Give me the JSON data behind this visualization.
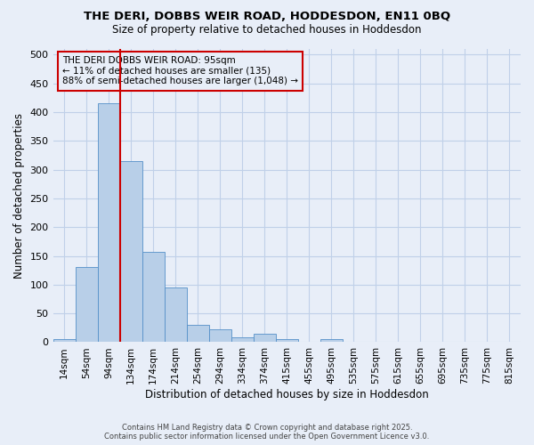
{
  "title_line1": "THE DERI, DOBBS WEIR ROAD, HODDESDON, EN11 0BQ",
  "title_line2": "Size of property relative to detached houses in Hoddesdon",
  "xlabel": "Distribution of detached houses by size in Hoddesdon",
  "ylabel": "Number of detached properties",
  "footer_line1": "Contains HM Land Registry data © Crown copyright and database right 2025.",
  "footer_line2": "Contains public sector information licensed under the Open Government Licence v3.0.",
  "categories": [
    "14sqm",
    "54sqm",
    "94sqm",
    "134sqm",
    "174sqm",
    "214sqm",
    "254sqm",
    "294sqm",
    "334sqm",
    "374sqm",
    "415sqm",
    "455sqm",
    "495sqm",
    "535sqm",
    "575sqm",
    "615sqm",
    "655sqm",
    "695sqm",
    "735sqm",
    "775sqm",
    "815sqm"
  ],
  "values": [
    5,
    130,
    415,
    315,
    157,
    95,
    30,
    22,
    8,
    15,
    5,
    0,
    5,
    0,
    0,
    0,
    0,
    0,
    0,
    0,
    0
  ],
  "bar_color": "#b8cfe8",
  "bar_edge_color": "#5590c8",
  "grid_color": "#c0d0e8",
  "background_color": "#e8eef8",
  "annotation_box_color": "#cc0000",
  "annotation_text_line1": "THE DERI DOBBS WEIR ROAD: 95sqm",
  "annotation_text_line2": "← 11% of detached houses are smaller (135)",
  "annotation_text_line3": "88% of semi-detached houses are larger (1,048) →",
  "vline_index": 2,
  "ylim": [
    0,
    510
  ],
  "yticks": [
    0,
    50,
    100,
    150,
    200,
    250,
    300,
    350,
    400,
    450,
    500
  ]
}
